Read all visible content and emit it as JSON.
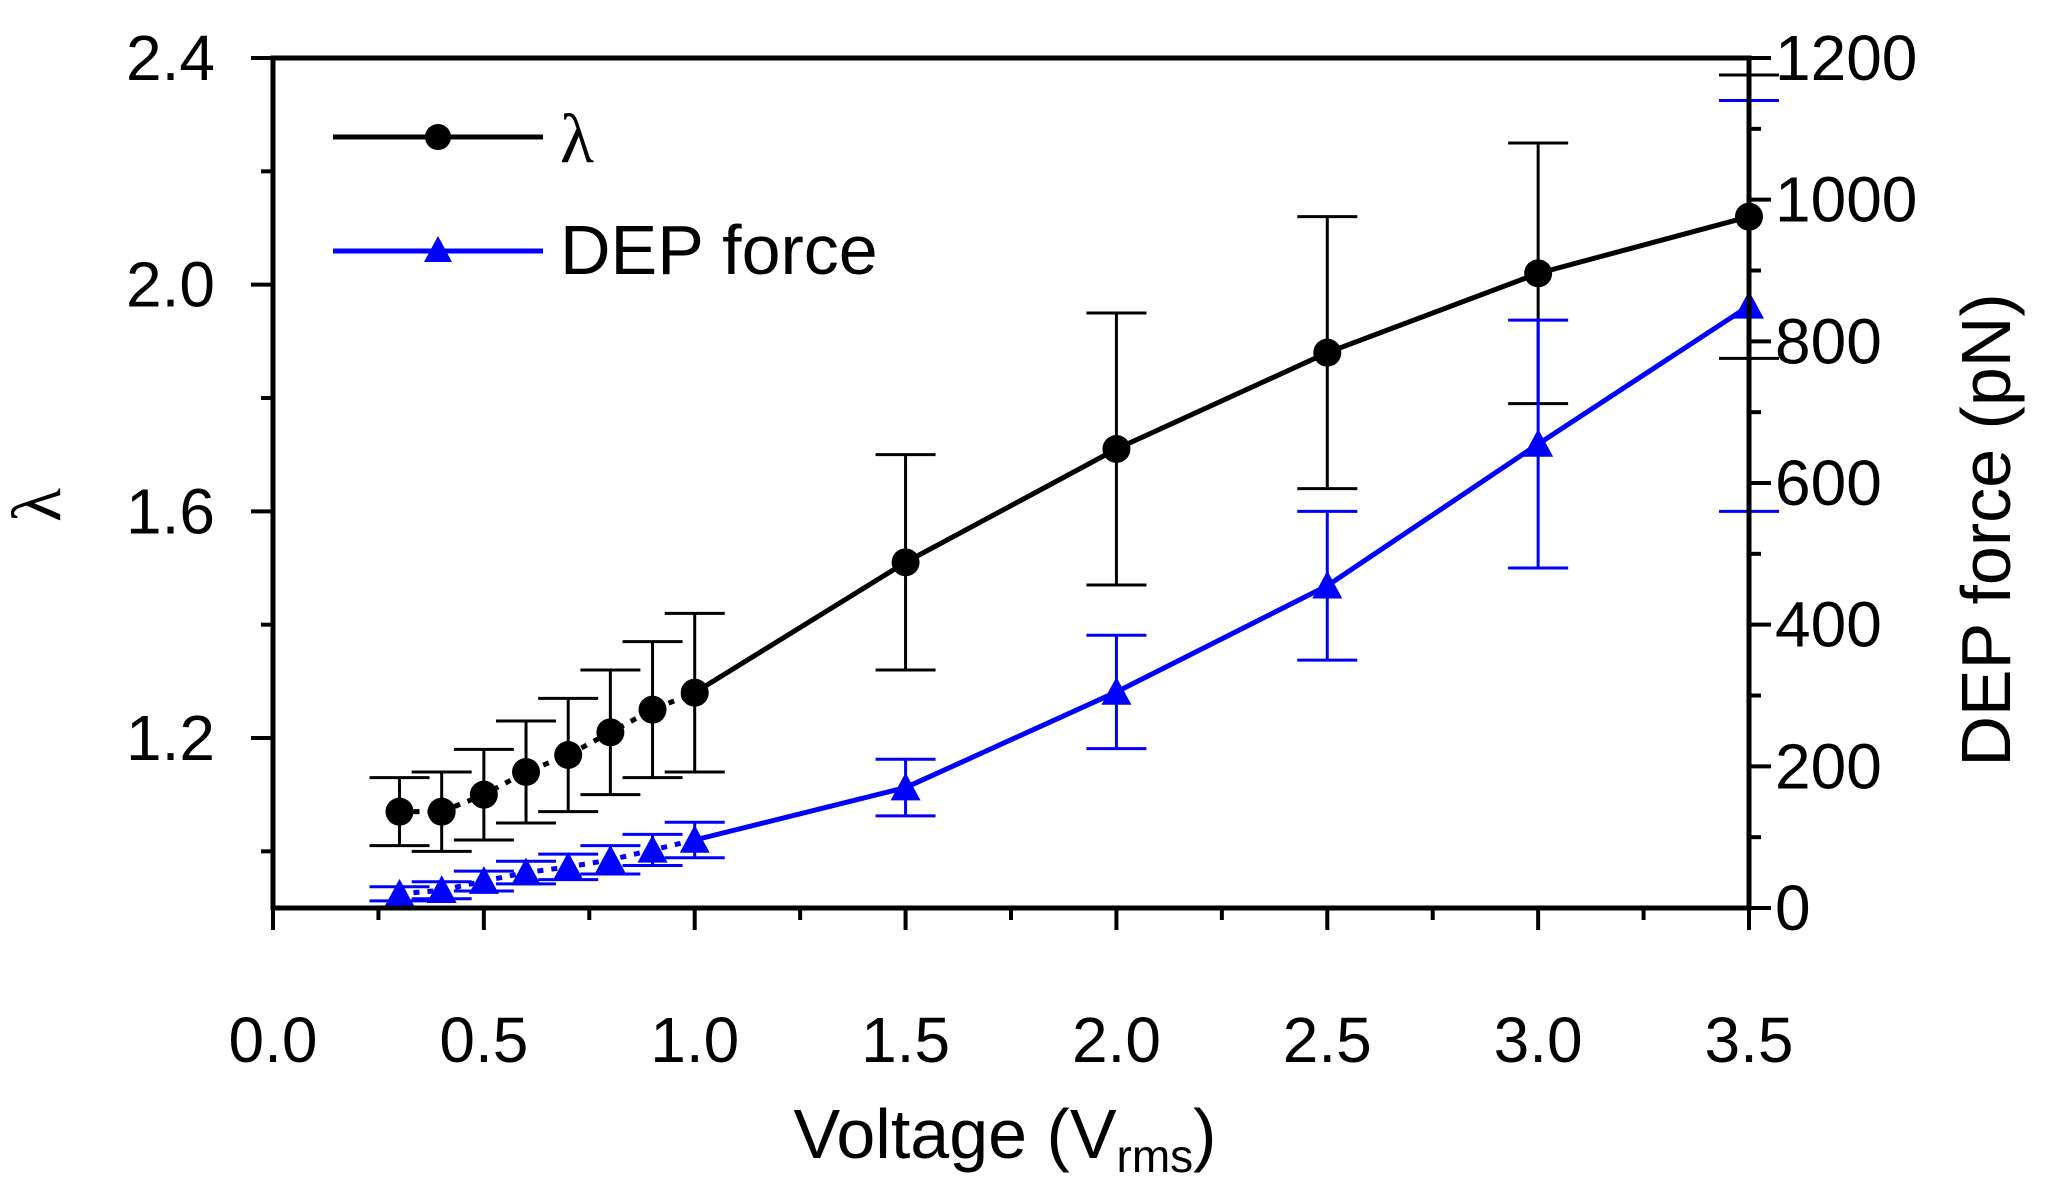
{
  "chart_data": {
    "type": "line",
    "title": "",
    "xlabel": "Voltage (V",
    "xlabel_sub": "rms",
    "xlabel_end": ")",
    "ylabel_left": "λ",
    "ylabel_right": "DEP force (pN)",
    "xlim": [
      0.0,
      3.5
    ],
    "ylim_left": [
      0.9,
      2.4
    ],
    "ylim_right": [
      0,
      1200
    ],
    "x_ticks": [
      "0.0",
      "0.5",
      "1.0",
      "1.5",
      "2.0",
      "2.5",
      "3.0",
      "3.5"
    ],
    "y_left_ticks": [
      "1.2",
      "1.6",
      "2.0",
      "2.4"
    ],
    "y_right_ticks": [
      "0",
      "200",
      "400",
      "600",
      "800",
      "1000",
      "1200"
    ],
    "legend_position": "top-left",
    "series": [
      {
        "name": "λ",
        "axis": "left",
        "color": "#000000",
        "marker": "circle",
        "x": [
          0.3,
          0.4,
          0.5,
          0.6,
          0.7,
          0.8,
          0.9,
          1.0,
          1.5,
          2.0,
          2.5,
          3.0,
          3.5
        ],
        "y": [
          1.07,
          1.07,
          1.1,
          1.14,
          1.17,
          1.21,
          1.25,
          1.28,
          1.51,
          1.71,
          1.88,
          2.02,
          2.12
        ],
        "err": [
          0.06,
          0.07,
          0.08,
          0.09,
          0.1,
          0.11,
          0.12,
          0.14,
          0.19,
          0.24,
          0.24,
          0.23,
          0.25
        ]
      },
      {
        "name": "DEP force",
        "axis": "right",
        "color": "#0000ff",
        "marker": "triangle",
        "x": [
          0.3,
          0.4,
          0.5,
          0.6,
          0.7,
          0.8,
          0.9,
          1.0,
          1.5,
          2.0,
          2.5,
          3.0,
          3.5
        ],
        "y": [
          20,
          25,
          38,
          50,
          58,
          68,
          82,
          96,
          170,
          305,
          455,
          655,
          850
        ],
        "err": [
          10,
          12,
          14,
          16,
          18,
          20,
          22,
          25,
          40,
          80,
          105,
          175,
          290
        ]
      }
    ]
  }
}
